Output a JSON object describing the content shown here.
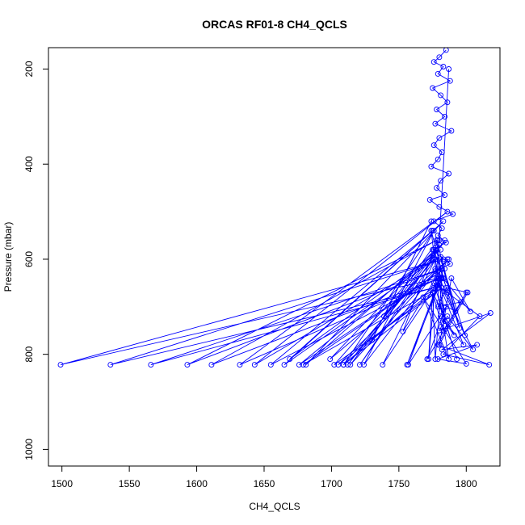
{
  "chart_data": {
    "type": "line",
    "title": "ORCAS RF01-8 CH4_QCLS",
    "xlabel": "CH4_QCLS",
    "ylabel": "Pressure (mbar)",
    "xlim": [
      1490,
      1825
    ],
    "ylim": [
      1035,
      155
    ],
    "y_reversed": true,
    "x_ticks": [
      1500,
      1550,
      1600,
      1650,
      1700,
      1750,
      1800
    ],
    "y_ticks": [
      200,
      400,
      600,
      800,
      1000
    ],
    "series_color": "#0000ff",
    "marker": "open-circle",
    "grid": false,
    "legend": "none",
    "series": [
      {
        "x": [
          1785,
          1780,
          1776,
          1783,
          1779,
          1788,
          1775,
          1781,
          1786,
          1778,
          1784,
          1777,
          1789,
          1780,
          1776,
          1782,
          1779,
          1774,
          1787,
          1781,
          1778,
          1784,
          1773,
          1780,
          1790,
          1776,
          1782,
          1779,
          1785,
          1775,
          1781,
          1788,
          1777,
          1783,
          1779,
          1786,
          1774,
          1780,
          1792,
          1778,
          1784,
          1776,
          1795,
          1781,
          1799,
          1777,
          1803,
          1789,
          1780,
          1801,
          1785,
          1779,
          1796,
          1783,
          1775,
          1791,
          1781,
          1798,
          1778,
          1805,
          1786,
          1780,
          1818,
          1782,
          1808,
          1779,
          1800,
          1768,
          1787,
          1781,
          1793,
          1776,
          1810,
          1783,
          1817,
          1779,
          1800,
          1771,
          1785,
          1757,
          1781,
          1738,
          1777,
          1721,
          1784,
          1714,
          1779,
          1724,
          1776,
          1709,
          1782,
          1702,
          1778,
          1681,
          1783,
          1665,
          1777,
          1643,
          1786,
          1632,
          1780,
          1611,
          1778,
          1593,
          1782,
          1566,
          1776,
          1536,
          1783,
          1499,
          1779,
          1655,
          1775,
          1669,
          1781,
          1676,
          1784,
          1679,
          1779,
          1705,
          1787,
          1699,
          1780,
          1712,
          1776,
          1709,
          1783,
          1730,
          1774,
          1739,
          1779,
          1753,
          1786,
          1756,
          1782,
          1777,
          1775,
          1772,
          1780,
          1787
        ],
        "y": [
          160,
          175,
          185,
          195,
          210,
          225,
          240,
          255,
          270,
          285,
          300,
          315,
          330,
          345,
          360,
          375,
          390,
          405,
          420,
          435,
          450,
          465,
          475,
          490,
          505,
          520,
          535,
          550,
          565,
          580,
          595,
          610,
          625,
          640,
          655,
          670,
          540,
          690,
          710,
          560,
          730,
          580,
          745,
          600,
          760,
          620,
          710,
          640,
          780,
          670,
          660,
          700,
          690,
          750,
          670,
          760,
          720,
          780,
          640,
          790,
          720,
          750,
          713,
          790,
          780,
          810,
          820,
          680,
          810,
          700,
          810,
          650,
          720,
          800,
          822,
          780,
          670,
          810,
          700,
          822,
          640,
          822,
          600,
          822,
          560,
          822,
          620,
          822,
          540,
          822,
          660,
          822,
          580,
          822,
          520,
          822,
          600,
          822,
          500,
          822,
          640,
          822,
          560,
          822,
          620,
          822,
          660,
          822,
          600,
          822,
          640,
          822,
          540,
          810,
          580,
          822,
          620,
          822,
          660,
          822,
          600,
          810,
          570,
          822,
          600,
          822,
          640,
          770,
          520,
          720,
          560,
          752,
          600,
          822,
          640,
          810,
          670,
          810,
          560,
          200
        ]
      }
    ]
  }
}
